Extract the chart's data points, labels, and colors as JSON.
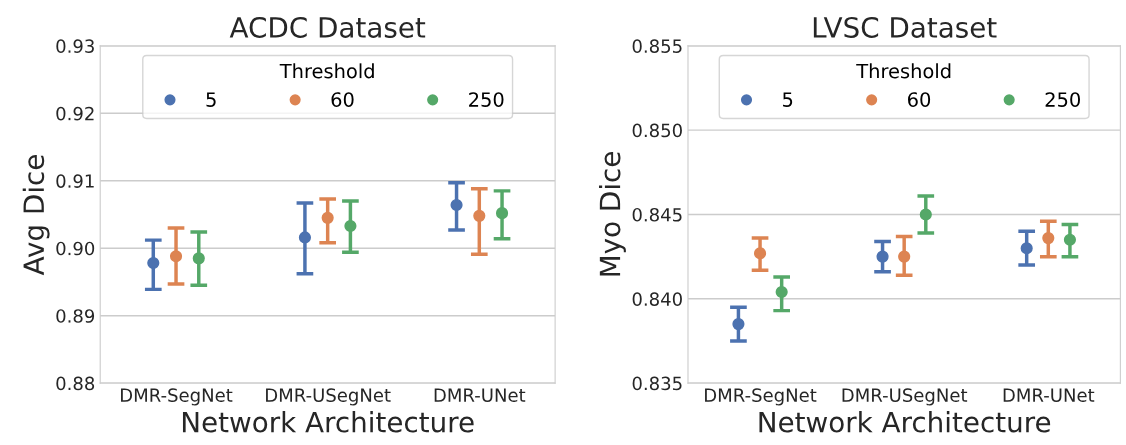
{
  "chart_data": [
    {
      "type": "scatter",
      "title": "ACDC Dataset",
      "xlabel": "Network Architecture",
      "ylabel": "Avg Dice",
      "legend_title": "Threshold",
      "legend": "top",
      "grid": "y",
      "marker": "circle",
      "categories": [
        "DMR-SegNet",
        "DMR-USegNet",
        "DMR-UNet"
      ],
      "ylim": [
        0.88,
        0.93
      ],
      "yticks": [
        {
          "value": 0.88,
          "label": "0.88"
        },
        {
          "value": 0.89,
          "label": "0.89"
        },
        {
          "value": 0.9,
          "label": "0.90"
        },
        {
          "value": 0.91,
          "label": "0.91"
        },
        {
          "value": 0.92,
          "label": "0.92"
        },
        {
          "value": 0.93,
          "label": "0.93"
        }
      ],
      "series": [
        {
          "name": "5",
          "color": "#4c72b0",
          "values": [
            0.8978,
            0.9016,
            0.9064
          ],
          "errors": [
            [
              0.8939,
              0.9012
            ],
            [
              0.8962,
              0.9067
            ],
            [
              0.9027,
              0.9097
            ]
          ]
        },
        {
          "name": "60",
          "color": "#dd8452",
          "values": [
            0.8988,
            0.9045,
            0.9048
          ],
          "errors": [
            [
              0.8947,
              0.903
            ],
            [
              0.9008,
              0.9073
            ],
            [
              0.8991,
              0.9088
            ]
          ]
        },
        {
          "name": "250",
          "color": "#55a868",
          "values": [
            0.8985,
            0.9033,
            0.9052
          ],
          "errors": [
            [
              0.8945,
              0.9024
            ],
            [
              0.8994,
              0.907
            ],
            [
              0.9014,
              0.9085
            ]
          ]
        }
      ]
    },
    {
      "type": "scatter",
      "title": "LVSC Dataset",
      "xlabel": "Network Architecture",
      "ylabel": "Myo Dice",
      "legend_title": "Threshold",
      "legend": "top",
      "grid": "y",
      "marker": "circle",
      "categories": [
        "DMR-SegNet",
        "DMR-USegNet",
        "DMR-UNet"
      ],
      "ylim": [
        0.835,
        0.855
      ],
      "yticks": [
        {
          "value": 0.835,
          "label": "0.835"
        },
        {
          "value": 0.84,
          "label": "0.840"
        },
        {
          "value": 0.845,
          "label": "0.845"
        },
        {
          "value": 0.85,
          "label": "0.850"
        },
        {
          "value": 0.855,
          "label": "0.855"
        }
      ],
      "series": [
        {
          "name": "5",
          "color": "#4c72b0",
          "values": [
            0.8385,
            0.8425,
            0.843
          ],
          "errors": [
            [
              0.8375,
              0.8395
            ],
            [
              0.8416,
              0.8434
            ],
            [
              0.842,
              0.844
            ]
          ]
        },
        {
          "name": "60",
          "color": "#dd8452",
          "values": [
            0.8427,
            0.8425,
            0.8436
          ],
          "errors": [
            [
              0.8417,
              0.8436
            ],
            [
              0.8414,
              0.8437
            ],
            [
              0.8425,
              0.8446
            ]
          ]
        },
        {
          "name": "250",
          "color": "#55a868",
          "values": [
            0.8404,
            0.845,
            0.8435
          ],
          "errors": [
            [
              0.8393,
              0.8413
            ],
            [
              0.8439,
              0.8461
            ],
            [
              0.8425,
              0.8444
            ]
          ]
        }
      ]
    }
  ]
}
